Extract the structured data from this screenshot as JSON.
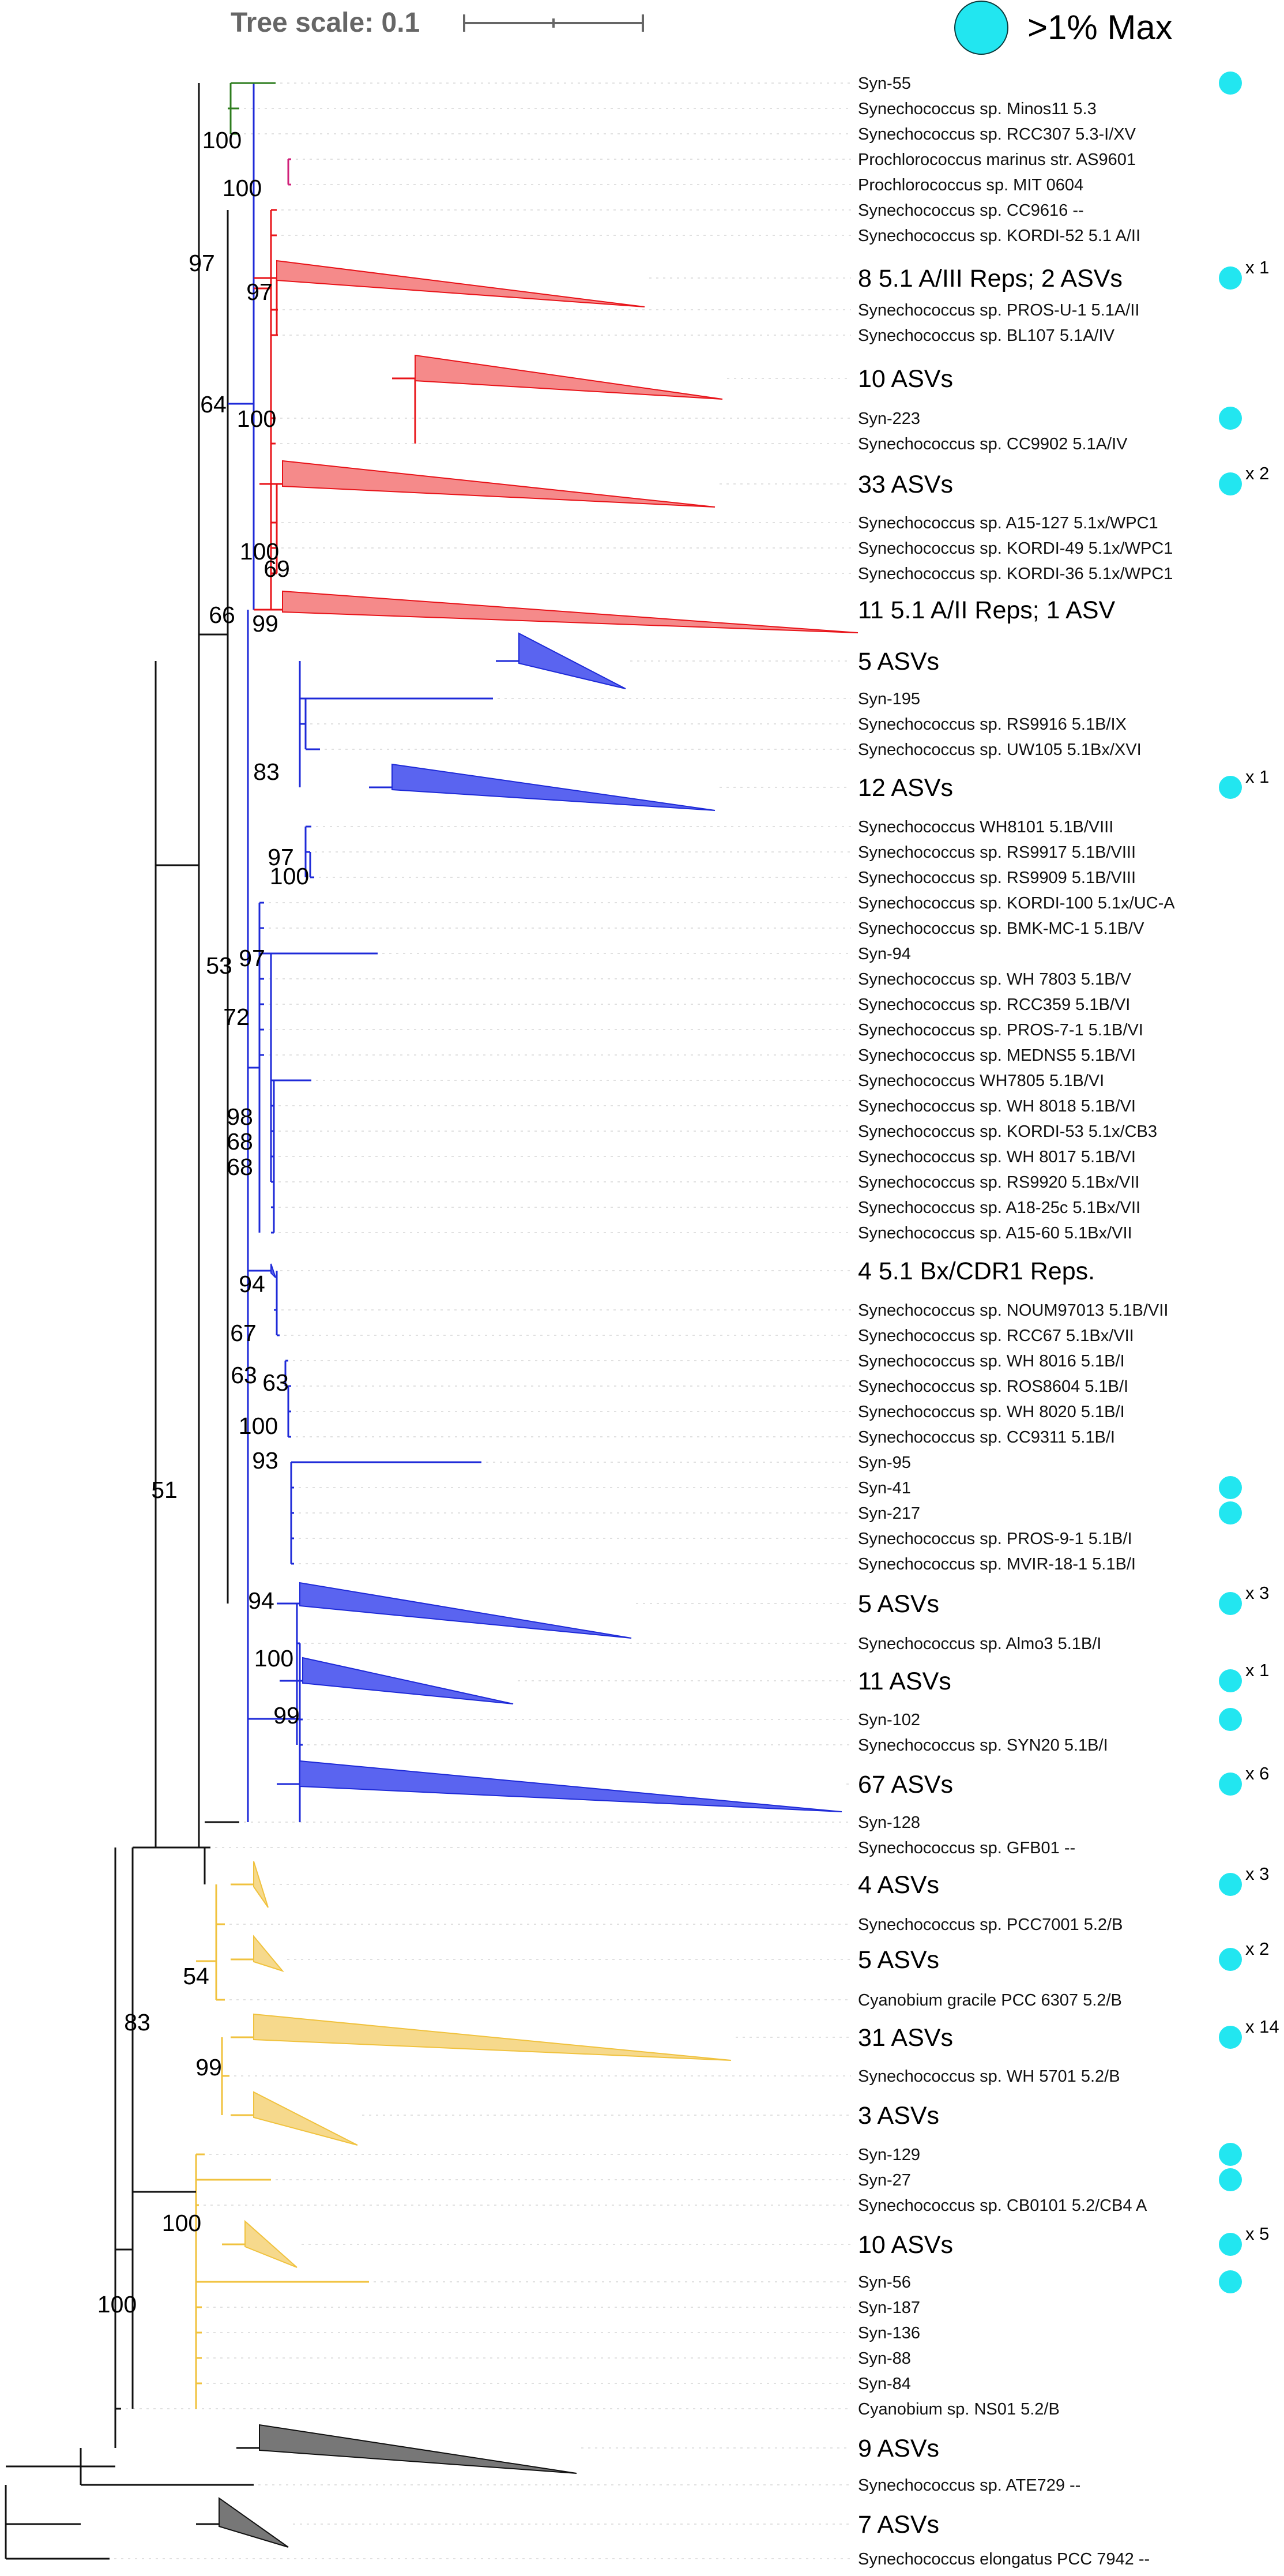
{
  "header": {
    "tree_scale_label": "Tree scale: 0.1",
    "legend_label": ">1% Max"
  },
  "colors": {
    "clade_green": "#2e7d1e",
    "clade_magenta": "#d0207a",
    "clade_red": "#e8141a",
    "clade_blue": "#1e2ad8",
    "clade_yellow": "#f0c23e",
    "clade_black": "#111111",
    "marker": "#22e6f0"
  },
  "leaves": [
    {
      "label": "Syn-55",
      "clade": "green",
      "marker": true
    },
    {
      "label": "Synechococcus sp. Minos11 5.3",
      "clade": "green"
    },
    {
      "label": "Synechococcus sp. RCC307 5.3-I/XV",
      "clade": "green"
    },
    {
      "label": "Prochlorococcus marinus str. AS9601",
      "clade": "magenta"
    },
    {
      "label": "Prochlorococcus sp. MIT 0604",
      "clade": "magenta"
    },
    {
      "label": "Synechococcus sp. CC9616 --",
      "clade": "red"
    },
    {
      "label": "Synechococcus sp. KORDI-52 5.1 A/II",
      "clade": "red"
    },
    {
      "label": "8 5.1 A/III Reps; 2 ASVs",
      "clade": "red",
      "collapsed": true,
      "marker": true,
      "multiplier": "x 1"
    },
    {
      "label": "Synechococcus sp. PROS-U-1 5.1A/II",
      "clade": "red"
    },
    {
      "label": "Synechococcus sp. BL107 5.1A/IV",
      "clade": "red"
    },
    {
      "label": "10 ASVs",
      "clade": "red",
      "collapsed": true
    },
    {
      "label": "Syn-223",
      "clade": "red",
      "marker": true
    },
    {
      "label": "Synechococcus sp. CC9902 5.1A/IV",
      "clade": "red"
    },
    {
      "label": "33 ASVs",
      "clade": "red",
      "collapsed": true,
      "marker": true,
      "multiplier": "x 2"
    },
    {
      "label": "Synechococcus sp. A15-127 5.1x/WPC1",
      "clade": "red"
    },
    {
      "label": "Synechococcus sp. KORDI-49 5.1x/WPC1",
      "clade": "red"
    },
    {
      "label": "Synechococcus sp. KORDI-36 5.1x/WPC1",
      "clade": "red"
    },
    {
      "label": "11 5.1 A/II Reps; 1 ASV",
      "clade": "red",
      "collapsed": true
    },
    {
      "label": "5 ASVs",
      "clade": "blue",
      "collapsed": true
    },
    {
      "label": "Syn-195",
      "clade": "blue"
    },
    {
      "label": "Synechococcus sp. RS9916 5.1B/IX",
      "clade": "blue"
    },
    {
      "label": "Synechococcus sp. UW105 5.1Bx/XVI",
      "clade": "blue"
    },
    {
      "label": "12 ASVs",
      "clade": "blue",
      "collapsed": true,
      "marker": true,
      "multiplier": "x 1"
    },
    {
      "label": "Synechococcus WH8101 5.1B/VIII",
      "clade": "blue"
    },
    {
      "label": "Synechococcus sp. RS9917 5.1B/VIII",
      "clade": "blue"
    },
    {
      "label": "Synechococcus sp. RS9909 5.1B/VIII",
      "clade": "blue"
    },
    {
      "label": "Synechococcus sp. KORDI-100 5.1x/UC-A",
      "clade": "blue"
    },
    {
      "label": "Synechococcus sp. BMK-MC-1 5.1B/V",
      "clade": "blue"
    },
    {
      "label": "Syn-94",
      "clade": "blue"
    },
    {
      "label": "Synechococcus sp. WH 7803 5.1B/V",
      "clade": "blue"
    },
    {
      "label": "Synechococcus sp. RCC359 5.1B/VI",
      "clade": "blue"
    },
    {
      "label": "Synechococcus sp. PROS-7-1 5.1B/VI",
      "clade": "blue"
    },
    {
      "label": "Synechococcus sp. MEDNS5 5.1B/VI",
      "clade": "blue"
    },
    {
      "label": "Synechococcus WH7805 5.1B/VI",
      "clade": "blue"
    },
    {
      "label": "Synechococcus sp. WH 8018 5.1B/VI",
      "clade": "blue"
    },
    {
      "label": "Synechococcus sp. KORDI-53 5.1x/CB3",
      "clade": "blue"
    },
    {
      "label": "Synechococcus sp. WH 8017 5.1B/VI",
      "clade": "blue"
    },
    {
      "label": "Synechococcus sp. RS9920 5.1Bx/VII",
      "clade": "blue"
    },
    {
      "label": "Synechococcus sp. A18-25c 5.1Bx/VII",
      "clade": "blue"
    },
    {
      "label": "Synechococcus sp. A15-60 5.1Bx/VII",
      "clade": "blue"
    },
    {
      "label": "4 5.1 Bx/CDR1 Reps.",
      "clade": "blue",
      "collapsed": true
    },
    {
      "label": "Synechococcus sp. NOUM97013 5.1B/VII",
      "clade": "blue"
    },
    {
      "label": "Synechococcus sp. RCC67 5.1Bx/VII",
      "clade": "blue"
    },
    {
      "label": "Synechococcus sp. WH 8016 5.1B/I",
      "clade": "blue"
    },
    {
      "label": "Synechococcus sp. ROS8604 5.1B/I",
      "clade": "blue"
    },
    {
      "label": "Synechococcus sp. WH 8020 5.1B/I",
      "clade": "blue"
    },
    {
      "label": "Synechococcus sp. CC9311 5.1B/I",
      "clade": "blue"
    },
    {
      "label": "Syn-95",
      "clade": "blue"
    },
    {
      "label": "Syn-41",
      "clade": "blue",
      "marker": true
    },
    {
      "label": "Syn-217",
      "clade": "blue",
      "marker": true
    },
    {
      "label": "Synechococcus sp. PROS-9-1 5.1B/I",
      "clade": "blue"
    },
    {
      "label": "Synechococcus sp. MVIR-18-1 5.1B/I",
      "clade": "blue"
    },
    {
      "label": "5 ASVs",
      "clade": "blue",
      "collapsed": true,
      "marker": true,
      "multiplier": "x 3"
    },
    {
      "label": "Synechococcus sp. Almo3 5.1B/I",
      "clade": "blue"
    },
    {
      "label": "11 ASVs",
      "clade": "blue",
      "collapsed": true,
      "marker": true,
      "multiplier": "x 1"
    },
    {
      "label": "Syn-102",
      "clade": "blue",
      "marker": true
    },
    {
      "label": "Synechococcus sp. SYN20 5.1B/I",
      "clade": "blue"
    },
    {
      "label": "67 ASVs",
      "clade": "blue",
      "collapsed": true,
      "marker": true,
      "multiplier": "x 6"
    },
    {
      "label": "Syn-128",
      "clade": "black"
    },
    {
      "label": "Synechococcus sp. GFB01 --",
      "clade": "black"
    },
    {
      "label": "4 ASVs",
      "clade": "yellow",
      "collapsed": true,
      "marker": true,
      "multiplier": "x 3"
    },
    {
      "label": "Synechococcus sp. PCC7001 5.2/B",
      "clade": "yellow"
    },
    {
      "label": "5 ASVs",
      "clade": "yellow",
      "collapsed": true,
      "marker": true,
      "multiplier": "x 2"
    },
    {
      "label": "Cyanobium gracile PCC 6307 5.2/B",
      "clade": "yellow"
    },
    {
      "label": "31 ASVs",
      "clade": "yellow",
      "collapsed": true,
      "marker": true,
      "multiplier": "x 14"
    },
    {
      "label": "Synechococcus sp. WH 5701 5.2/B",
      "clade": "yellow"
    },
    {
      "label": "3 ASVs",
      "clade": "yellow",
      "collapsed": true
    },
    {
      "label": "Syn-129",
      "clade": "yellow",
      "marker": true
    },
    {
      "label": "Syn-27",
      "clade": "yellow",
      "marker": true
    },
    {
      "label": "Synechococcus sp. CB0101 5.2/CB4 A",
      "clade": "yellow"
    },
    {
      "label": "10 ASVs",
      "clade": "yellow",
      "collapsed": true,
      "marker": true,
      "multiplier": "x 5"
    },
    {
      "label": "Syn-56",
      "clade": "yellow",
      "marker": true
    },
    {
      "label": "Syn-187",
      "clade": "yellow"
    },
    {
      "label": "Syn-136",
      "clade": "yellow"
    },
    {
      "label": "Syn-88",
      "clade": "yellow"
    },
    {
      "label": "Syn-84",
      "clade": "yellow"
    },
    {
      "label": "Cyanobium sp. NS01 5.2/B",
      "clade": "black"
    },
    {
      "label": "9 ASVs",
      "clade": "black",
      "collapsed": true
    },
    {
      "label": "Synechococcus sp. ATE729 --",
      "clade": "black"
    },
    {
      "label": "7 ASVs",
      "clade": "black",
      "collapsed": true
    },
    {
      "label": "Synechococcus elongatus PCC 7942 --",
      "clade": "black"
    }
  ],
  "bootstrap": [
    {
      "value": "100",
      "node": "green-clade"
    },
    {
      "value": "100",
      "node": "prochlorococcus"
    },
    {
      "value": "97",
      "node": "red-blue-crown"
    },
    {
      "value": "97",
      "node": "red-5.1A-III"
    },
    {
      "value": "64",
      "node": "red-blue-split"
    },
    {
      "value": "100",
      "node": "red-10-asvs"
    },
    {
      "value": "100",
      "node": "red-wpc1"
    },
    {
      "value": "69",
      "node": "red-kordi36"
    },
    {
      "value": "66",
      "node": "blue-root"
    },
    {
      "value": "99",
      "node": "red-5.1A-II"
    },
    {
      "value": "83",
      "node": "blue-12-asvs"
    },
    {
      "value": "97",
      "node": "blue-viii"
    },
    {
      "value": "100",
      "node": "blue-rs9909"
    },
    {
      "value": "53",
      "node": "blue-bmk"
    },
    {
      "value": "97",
      "node": "blue-syn94"
    },
    {
      "value": "72",
      "node": "blue-vi"
    },
    {
      "value": "98",
      "node": "blue-wh8018"
    },
    {
      "value": "68",
      "node": "blue-kordi53"
    },
    {
      "value": "68",
      "node": "blue-wh8017"
    },
    {
      "value": "94",
      "node": "blue-cdr1"
    },
    {
      "value": "67",
      "node": "blue-rcc67"
    },
    {
      "value": "63",
      "node": "blue-wh8016"
    },
    {
      "value": "63",
      "node": "blue-ros8604"
    },
    {
      "value": "100",
      "node": "blue-wh8020"
    },
    {
      "value": "93",
      "node": "blue-syn95"
    },
    {
      "value": "51",
      "node": "cyanobium-split"
    },
    {
      "value": "94",
      "node": "blue-5-asvs"
    },
    {
      "value": "100",
      "node": "blue-11-asvs"
    },
    {
      "value": "99",
      "node": "blue-syn102"
    },
    {
      "value": "54",
      "node": "yellow-pcc7001"
    },
    {
      "value": "83",
      "node": "yellow-root"
    },
    {
      "value": "99",
      "node": "yellow-wh5701"
    },
    {
      "value": "100",
      "node": "yellow-cb0101"
    },
    {
      "value": "100",
      "node": "ingroup-root"
    }
  ]
}
